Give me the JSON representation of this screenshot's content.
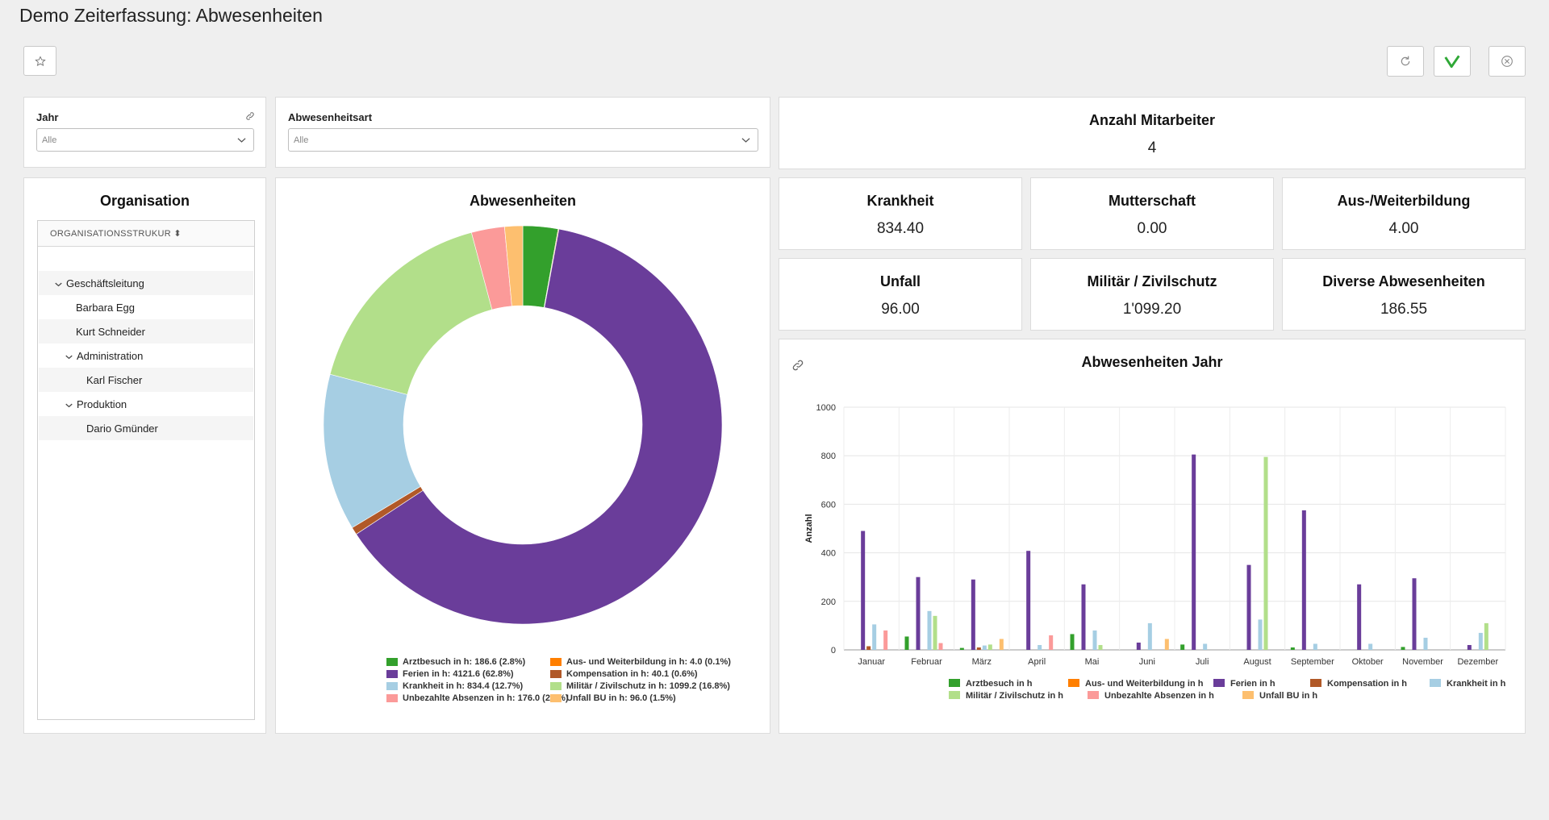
{
  "page": {
    "title": "Demo Zeiterfassung: Abwesenheiten"
  },
  "toolbar": {
    "favorite_icon": "star-icon",
    "refresh_icon": "refresh-icon",
    "confirm_icon": "check-icon",
    "close_icon": "close-circle-icon"
  },
  "filters": {
    "year": {
      "label": "Jahr",
      "value": "Alle",
      "link_icon": "link-icon"
    },
    "absence_type": {
      "label": "Abwesenheitsart",
      "value": "Alle"
    }
  },
  "employees": {
    "label": "Anzahl Mitarbeiter",
    "value": "4"
  },
  "kpis": [
    {
      "label": "Krankheit",
      "value": "834.40"
    },
    {
      "label": "Mutterschaft",
      "value": "0.00"
    },
    {
      "label": "Aus-/Weiterbildung",
      "value": "4.00"
    },
    {
      "label": "Unfall",
      "value": "96.00"
    },
    {
      "label": "Militär / Zivilschutz",
      "value": "1'099.20"
    },
    {
      "label": "Diverse Abwesenheiten",
      "value": "186.55"
    }
  ],
  "organisation": {
    "title": "Organisation",
    "column_header": "ORGANISATIONSSTRUKUR ⬍",
    "items": [
      {
        "label": "Geschäftsleitung",
        "level": 0,
        "expanded": true
      },
      {
        "label": "Barbara Egg",
        "level": 1
      },
      {
        "label": "Kurt Schneider",
        "level": 1
      },
      {
        "label": "Administration",
        "level": 1,
        "expanded": true
      },
      {
        "label": "Karl Fischer",
        "level": 2
      },
      {
        "label": "Produktion",
        "level": 1,
        "expanded": true
      },
      {
        "label": "Dario Gmünder",
        "level": 2
      }
    ]
  },
  "donut": {
    "title": "Abwesenheiten",
    "chart_data": {
      "type": "pie",
      "variant": "donut",
      "slices": [
        {
          "name": "Arztbesuch in h",
          "value": 186.6,
          "color": "#33a02c",
          "legend": "Arztbesuch in h: 186.6 (2.8%)"
        },
        {
          "name": "Aus- und Weiterbildung in h",
          "value": 4.0,
          "color": "#ff7f00",
          "legend": "Aus- und Weiterbildung in h: 4.0 (0.1%)"
        },
        {
          "name": "Ferien in h",
          "value": 4121.6,
          "color": "#6a3d9a",
          "legend": "Ferien in h: 4121.6 (62.8%)"
        },
        {
          "name": "Kompensation in h",
          "value": 40.1,
          "color": "#b15928",
          "legend": "Kompensation in h: 40.1 (0.6%)"
        },
        {
          "name": "Krankheit in h",
          "value": 834.4,
          "color": "#a6cee3",
          "legend": "Krankheit in h: 834.4 (12.7%)"
        },
        {
          "name": "Militär / Zivilschutz in h",
          "value": 1099.2,
          "color": "#b2df8a",
          "legend": "Militär / Zivilschutz in h: 1099.2 (16.8%)"
        },
        {
          "name": "Unbezahlte Absenzen in h",
          "value": 176.0,
          "color": "#fb9a99",
          "legend": "Unbezahlte Absenzen in h: 176.0 (2.7%)"
        },
        {
          "name": "Unfall BU in h",
          "value": 96.0,
          "color": "#fdbf6f",
          "legend": "Unfall BU in h: 96.0 (1.5%)"
        }
      ],
      "legend_placement": "bottom"
    }
  },
  "bar": {
    "title": "Abwesenheiten Jahr",
    "link_icon": "link-icon",
    "chart_data": {
      "type": "bar",
      "ylabel": "Anzahl",
      "ylim": [
        0,
        1000
      ],
      "yticks": [
        0,
        200,
        400,
        600,
        800,
        1000
      ],
      "grid": true,
      "legend_placement": "bottom",
      "categories": [
        "Januar",
        "Februar",
        "März",
        "April",
        "Mai",
        "Juni",
        "Juli",
        "August",
        "September",
        "Oktober",
        "November",
        "Dezember"
      ],
      "series": [
        {
          "name": "Arztbesuch in h",
          "color": "#33a02c",
          "values": [
            0,
            55,
            8,
            0,
            65,
            0,
            22,
            0,
            10,
            0,
            12,
            0
          ]
        },
        {
          "name": "Aus- und Weiterbildung in h",
          "color": "#ff7f00",
          "values": [
            0,
            0,
            0,
            0,
            0,
            0,
            0,
            0,
            0,
            0,
            0,
            0
          ]
        },
        {
          "name": "Ferien in h",
          "color": "#6a3d9a",
          "values": [
            490,
            300,
            290,
            408,
            270,
            30,
            805,
            350,
            575,
            270,
            295,
            20
          ]
        },
        {
          "name": "Kompensation in h",
          "color": "#b15928",
          "values": [
            15,
            0,
            10,
            0,
            0,
            0,
            0,
            0,
            0,
            0,
            0,
            0
          ]
        },
        {
          "name": "Krankheit in h",
          "color": "#a6cee3",
          "values": [
            105,
            160,
            18,
            20,
            80,
            110,
            25,
            125,
            25,
            25,
            50,
            70
          ]
        },
        {
          "name": "Militär / Zivilschutz in h",
          "color": "#b2df8a",
          "values": [
            0,
            140,
            22,
            0,
            20,
            0,
            0,
            795,
            0,
            0,
            0,
            110
          ]
        },
        {
          "name": "Unbezahlte Absenzen in h",
          "color": "#fb9a99",
          "values": [
            80,
            28,
            0,
            60,
            0,
            0,
            0,
            0,
            0,
            0,
            0,
            0
          ]
        },
        {
          "name": "Unfall BU in h",
          "color": "#fdbf6f",
          "values": [
            0,
            0,
            45,
            0,
            0,
            45,
            0,
            0,
            0,
            0,
            0,
            0
          ]
        }
      ]
    }
  }
}
